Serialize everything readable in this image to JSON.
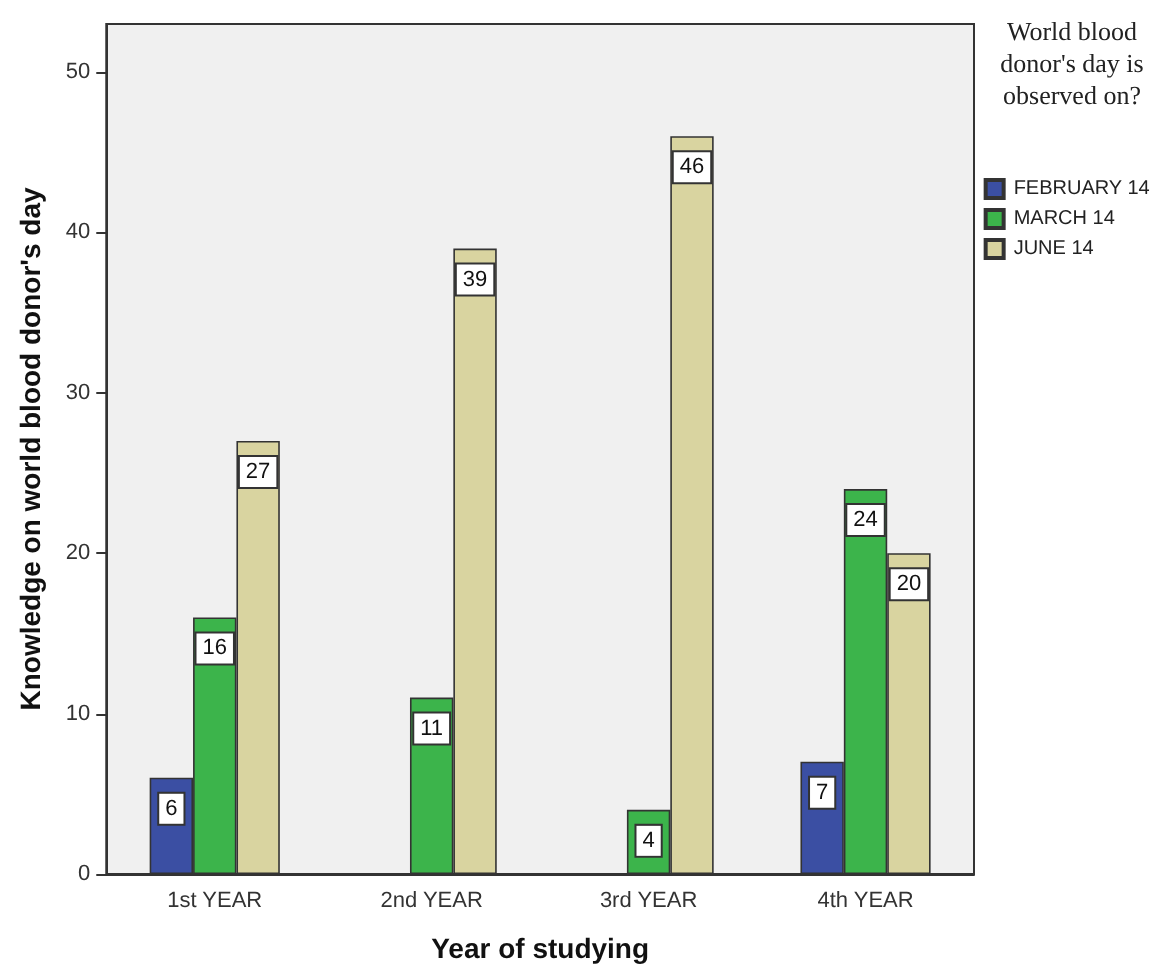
{
  "chart_data": {
    "type": "bar",
    "xlabel": "Year of studying",
    "ylabel": "Knowledge on world blood donor's day",
    "legend_title": "World blood donor's day is observed on?",
    "categories": [
      "1st YEAR",
      "2nd YEAR",
      "3rd YEAR",
      "4th YEAR"
    ],
    "series": [
      {
        "name": "FEBRUARY 14",
        "color": "#3b4fa3",
        "values": [
          6,
          null,
          null,
          7
        ]
      },
      {
        "name": "MARCH 14",
        "color": "#3cb44b",
        "values": [
          16,
          11,
          4,
          24
        ]
      },
      {
        "name": "JUNE 14",
        "color": "#d9d4a0",
        "values": [
          27,
          39,
          46,
          20
        ]
      }
    ],
    "ylim": [
      0,
      53
    ],
    "yticks": [
      0,
      10,
      20,
      30,
      40,
      50
    ],
    "grid": false,
    "legend": "top right",
    "data_labels": true
  }
}
